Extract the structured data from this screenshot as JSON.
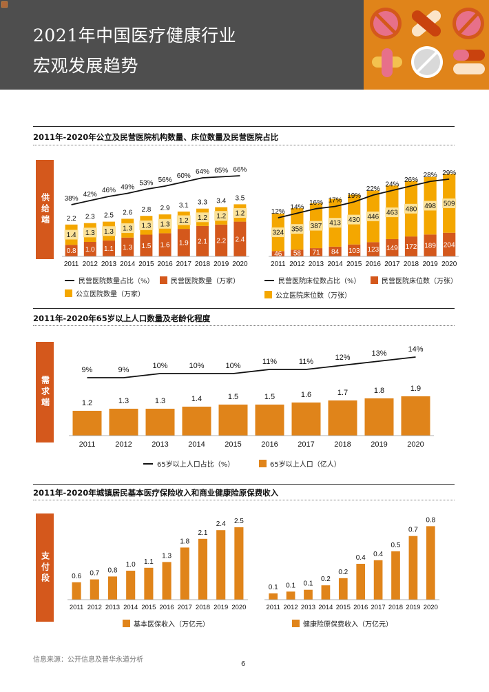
{
  "header": {
    "title_line1": "2021年中国医疗健康行业",
    "title_line2": "宏观发展趋势"
  },
  "colors": {
    "public": "#f4a700",
    "private": "#d4581c",
    "dark_orange": "#e0841a",
    "tab": "#d4581c",
    "line": "#111111"
  },
  "sections": {
    "s1_title": "2011年-2020年公立及民营医院机构数量、床位数量及民营医院占比",
    "s2_title": "2011年-2020年65岁以上人口数量及老龄化程度",
    "s3_title": "2011年-2020年城镇居民基本医疗保险收入和商业健康险原保费收入"
  },
  "tabs": {
    "supply": "供给端",
    "demand": "需求端",
    "payment": "支付段"
  },
  "chart_data": [
    {
      "id": "hospital-count",
      "type": "bar",
      "stacked": true,
      "categories": [
        "2011",
        "2012",
        "2013",
        "2014",
        "2015",
        "2016",
        "2017",
        "2018",
        "2019",
        "2020"
      ],
      "series": [
        {
          "name": "民营医院数量（万家）",
          "kind": "bar",
          "values": [
            0.8,
            1.0,
            1.1,
            1.3,
            1.5,
            1.6,
            1.9,
            2.1,
            2.2,
            2.4
          ]
        },
        {
          "name": "公立医院数量（万家）",
          "kind": "bar",
          "values": [
            1.4,
            1.3,
            1.3,
            1.3,
            1.3,
            1.3,
            1.2,
            1.2,
            1.2,
            1.2
          ]
        },
        {
          "name": "民营医院数量占比（%）",
          "kind": "line",
          "values": [
            38,
            42,
            46,
            49,
            53,
            56,
            60,
            64,
            65,
            66
          ],
          "labels": [
            "38%",
            "42%",
            "46%",
            "49%",
            "53%",
            "56%",
            "60%",
            "64%",
            "65%",
            "66%"
          ]
        }
      ],
      "totals": [
        "2.2",
        "2.3",
        "2.5",
        "2.6",
        "2.8",
        "2.9",
        "3.1",
        "3.3",
        "3.4",
        "3.5"
      ],
      "private_labels": [
        "0.8",
        "1.0",
        "1.1",
        "1.3",
        "1.5",
        "1.6",
        "1.9",
        "2.1",
        "2.2",
        "2.4"
      ],
      "public_labels": [
        "1.4",
        "1.3",
        "1.3",
        "1.3",
        "1.3",
        "1.3",
        "1.2",
        "1.2",
        "1.2",
        "1.2"
      ],
      "legend": {
        "line": "民营医院数量占比（%）",
        "private": "民营医院数量（万家）",
        "public": "公立医院数量（万家）"
      }
    },
    {
      "id": "bed-count",
      "type": "bar",
      "stacked": true,
      "categories": [
        "2011",
        "2012",
        "2013",
        "2014",
        "2015",
        "2016",
        "2017",
        "2018",
        "2019",
        "2020"
      ],
      "series": [
        {
          "name": "民营医院床位数（万张）",
          "kind": "bar",
          "values": [
            46,
            58,
            71,
            84,
            103,
            123,
            149,
            172,
            189,
            204
          ]
        },
        {
          "name": "公立医院床位数（万张）",
          "kind": "bar",
          "values": [
            324,
            358,
            387,
            413,
            430,
            446,
            463,
            480,
            498,
            509
          ]
        },
        {
          "name": "民营医院床位数占比（%）",
          "kind": "line",
          "values": [
            12,
            14,
            16,
            17,
            19,
            22,
            24,
            26,
            28,
            29
          ],
          "labels": [
            "12%",
            "14%",
            "16%",
            "17%",
            "19%",
            "22%",
            "24%",
            "26%",
            "28%",
            "29%"
          ]
        }
      ],
      "private_labels": [
        "46",
        "58",
        "71",
        "84",
        "103",
        "123",
        "149",
        "172",
        "189",
        "204"
      ],
      "public_labels": [
        "324",
        "358",
        "387",
        "413",
        "430",
        "446",
        "463",
        "480",
        "498",
        "509"
      ],
      "legend": {
        "line": "民营医院床位数占比（%）",
        "private": "民营医院床位数（万张）",
        "public": "公立医院床位数（万张）"
      }
    },
    {
      "id": "elderly",
      "type": "bar",
      "categories": [
        "2011",
        "2012",
        "2013",
        "2014",
        "2015",
        "2016",
        "2017",
        "2018",
        "2019",
        "2020"
      ],
      "series": [
        {
          "name": "65岁以上人口（亿人）",
          "kind": "bar",
          "values": [
            1.2,
            1.3,
            1.3,
            1.4,
            1.5,
            1.5,
            1.6,
            1.7,
            1.8,
            1.9
          ]
        },
        {
          "name": "65岁以上人口占比（%）",
          "kind": "line",
          "values": [
            9,
            9,
            10,
            10,
            10,
            11,
            11,
            12,
            13,
            14
          ],
          "labels": [
            "9%",
            "9%",
            "10%",
            "10%",
            "10%",
            "11%",
            "11%",
            "12%",
            "13%",
            "14%"
          ]
        }
      ],
      "bar_labels": [
        "1.2",
        "1.3",
        "1.3",
        "1.4",
        "1.5",
        "1.5",
        "1.6",
        "1.7",
        "1.8",
        "1.9"
      ],
      "legend": {
        "line": "65岁以上人口占比（%）",
        "bar": "65岁以上人口（亿人）"
      }
    },
    {
      "id": "basic-insurance",
      "type": "bar",
      "categories": [
        "2011",
        "2012",
        "2013",
        "2014",
        "2015",
        "2016",
        "2017",
        "2018",
        "2019",
        "2020"
      ],
      "series": [
        {
          "name": "基本医保收入（万亿元）",
          "values": [
            0.6,
            0.7,
            0.8,
            1.0,
            1.1,
            1.3,
            1.8,
            2.1,
            2.4,
            2.5
          ]
        }
      ],
      "bar_labels": [
        "0.6",
        "0.7",
        "0.8",
        "1.0",
        "1.1",
        "1.3",
        "1.8",
        "2.1",
        "2.4",
        "2.5"
      ],
      "legend": {
        "bar": "基本医保收入（万亿元）"
      }
    },
    {
      "id": "commercial-insurance",
      "type": "bar",
      "categories": [
        "2011",
        "2012",
        "2013",
        "2014",
        "2015",
        "2016",
        "2017",
        "2018",
        "2019",
        "2020"
      ],
      "series": [
        {
          "name": "健康险原保费收入（万亿元）",
          "values": [
            0.07,
            0.09,
            0.11,
            0.16,
            0.24,
            0.4,
            0.44,
            0.54,
            0.71,
            0.82
          ]
        }
      ],
      "bar_labels": [
        "0.1",
        "0.1",
        "0.1",
        "0.2",
        "0.2",
        "0.4",
        "0.4",
        "0.5",
        "0.7",
        "0.8"
      ],
      "legend": {
        "bar": "健康险原保费收入（万亿元）"
      }
    }
  ],
  "footer": {
    "source": "信息来源：公开信息及普华永道分析",
    "page": "6"
  }
}
